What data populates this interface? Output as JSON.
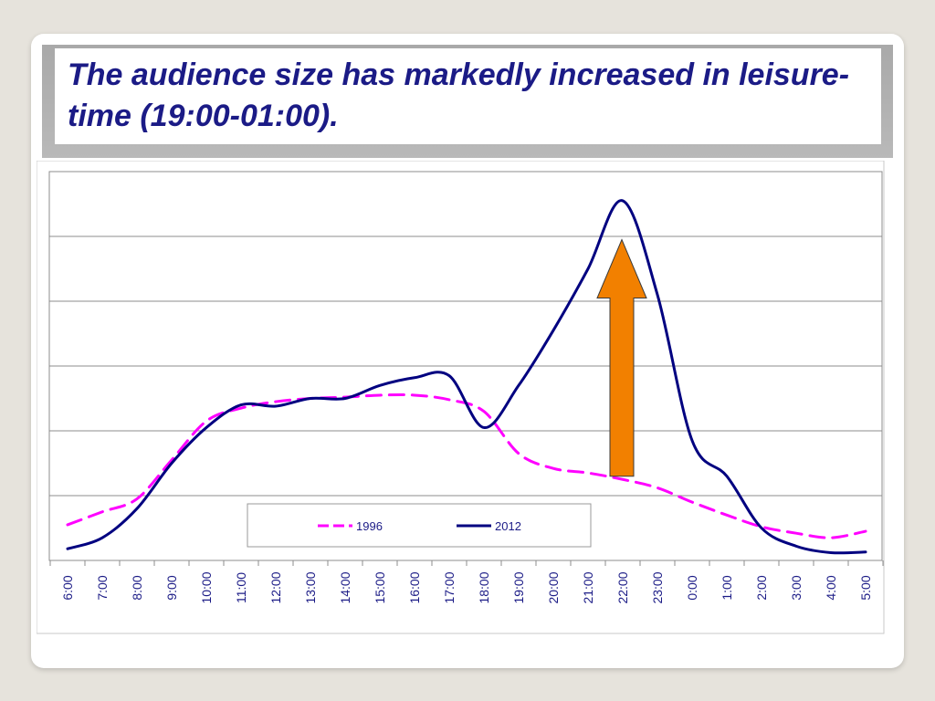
{
  "slide": {
    "title": "The audience size has markedly increased in leisure-time (19:00-01:00)."
  },
  "chart_data": {
    "type": "line",
    "title": "",
    "xlabel": "",
    "ylabel": "",
    "y_tick_labels_shown": false,
    "ylim": [
      0,
      6
    ],
    "grid": "horizontal",
    "legend_position": "bottom-center",
    "x": [
      "6:00",
      "7:00",
      "8:00",
      "9:00",
      "10:00",
      "11:00",
      "12:00",
      "13:00",
      "14:00",
      "15:00",
      "16:00",
      "17:00",
      "18:00",
      "19:00",
      "20:00",
      "21:00",
      "22:00",
      "23:00",
      "0:00",
      "1:00",
      "2:00",
      "3:00",
      "4:00",
      "5:00"
    ],
    "series": [
      {
        "name": "1996",
        "style": "dashed",
        "color": "#ff00ff",
        "values": [
          0.55,
          0.75,
          0.95,
          1.55,
          2.15,
          2.35,
          2.45,
          2.5,
          2.52,
          2.55,
          2.55,
          2.48,
          2.3,
          1.65,
          1.42,
          1.35,
          1.25,
          1.12,
          0.9,
          0.7,
          0.52,
          0.42,
          0.35,
          0.45
        ]
      },
      {
        "name": "2012",
        "style": "solid",
        "color": "#000080",
        "values": [
          0.18,
          0.35,
          0.8,
          1.5,
          2.05,
          2.4,
          2.38,
          2.5,
          2.5,
          2.7,
          2.82,
          2.85,
          2.05,
          2.7,
          3.55,
          4.5,
          5.55,
          4.1,
          1.85,
          1.3,
          0.5,
          0.22,
          0.12,
          0.13
        ]
      }
    ],
    "annotation": {
      "type": "arrow",
      "direction": "up",
      "color": "#f28000",
      "at_x": "22:00",
      "from_y": 1.3,
      "to_y": 4.95
    }
  }
}
